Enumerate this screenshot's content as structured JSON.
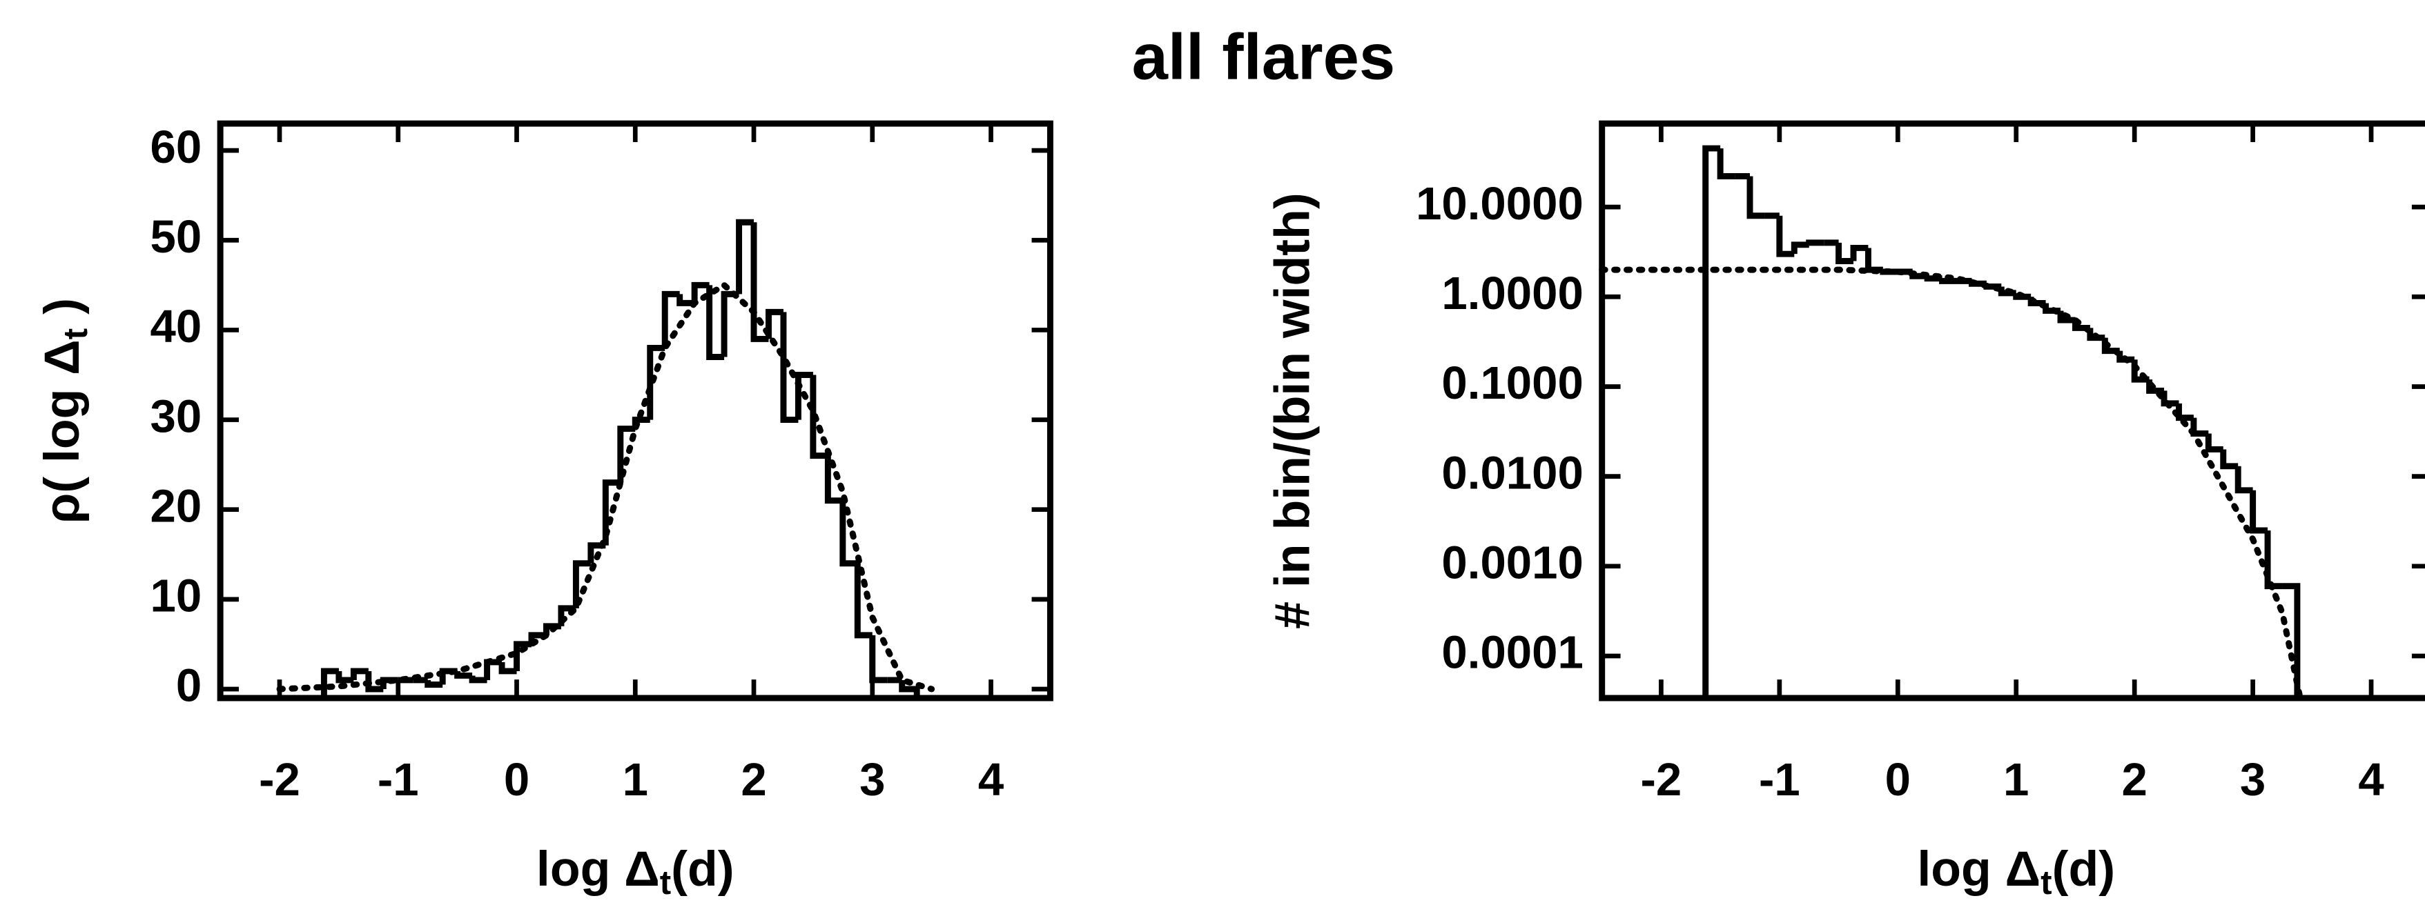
{
  "title": "all flares",
  "chart_data": [
    {
      "type": "histogram",
      "bins": [
        -1.625,
        -1.5,
        -1.375,
        -1.25,
        -1.125,
        -1.0,
        -0.875,
        -0.75,
        -0.625,
        -0.5,
        -0.375,
        -0.25,
        -0.125,
        0,
        0.125,
        0.25,
        0.375,
        0.5,
        0.625,
        0.75,
        0.875,
        1.0,
        1.125,
        1.25,
        1.375,
        1.5,
        1.625,
        1.75,
        1.875,
        2.0,
        2.125,
        2.25,
        2.375,
        2.5,
        2.625,
        2.75,
        2.875,
        3.0,
        3.125,
        3.25,
        3.375
      ],
      "values": [
        2,
        1,
        2,
        0,
        1,
        1,
        1,
        0.5,
        2,
        1.5,
        1,
        3,
        2,
        5,
        6,
        7,
        9,
        14,
        16,
        23,
        29,
        30,
        38,
        44,
        43,
        45,
        37,
        44,
        52,
        39,
        42,
        30,
        35,
        26,
        21,
        14,
        6,
        1,
        1,
        0
      ],
      "fit": {
        "x": [
          -2,
          -1.5,
          -1,
          -0.5,
          0,
          0.25,
          0.5,
          0.75,
          1,
          1.25,
          1.5,
          1.75,
          2,
          2.25,
          2.5,
          2.75,
          3,
          3.25,
          3.5
        ],
        "y": [
          0,
          0.3,
          1,
          2,
          4,
          6,
          9,
          17,
          29,
          38,
          43,
          45,
          42,
          37,
          31,
          22,
          8,
          1,
          0
        ]
      },
      "color": "#000000",
      "xlim": [
        -2.5,
        4.5
      ],
      "ylim": [
        -1,
        63
      ],
      "xticks": [
        -2,
        -1,
        0,
        1,
        2,
        3,
        4
      ],
      "yticks": [
        0,
        10,
        20,
        30,
        40,
        50,
        60
      ],
      "xlabel": [
        "log Δ",
        "t",
        "(d)"
      ],
      "ylabel": [
        "ρ( log Δ",
        "t",
        " )"
      ]
    },
    {
      "type": "histogram",
      "bins": [
        -1.625,
        -1.5,
        -1.375,
        -1.25,
        -1.125,
        -1.0,
        -0.875,
        -0.75,
        -0.625,
        -0.5,
        -0.375,
        -0.25,
        -0.125,
        0,
        0.125,
        0.25,
        0.375,
        0.5,
        0.625,
        0.75,
        0.875,
        1.0,
        1.125,
        1.25,
        1.375,
        1.5,
        1.625,
        1.75,
        1.875,
        2.0,
        2.125,
        2.25,
        2.375,
        2.5,
        2.625,
        2.75,
        2.875,
        3.0,
        3.125,
        3.25,
        3.375
      ],
      "values": [
        45,
        22,
        22,
        8,
        8,
        3,
        3.8,
        4,
        4,
        2.5,
        3.5,
        2,
        1.9,
        1.9,
        1.7,
        1.6,
        1.5,
        1.5,
        1.4,
        1.3,
        1.1,
        1.0,
        0.85,
        0.7,
        0.55,
        0.45,
        0.35,
        0.25,
        0.2,
        0.12,
        0.09,
        0.065,
        0.045,
        0.03,
        0.02,
        0.013,
        0.007,
        0.0025,
        0.0006,
        0.0006
      ],
      "fit": {
        "x": [
          -2.5,
          -2,
          -1.5,
          -1,
          -0.5,
          0,
          0.5,
          1,
          1.5,
          2,
          2.5,
          3,
          3.25,
          3.4
        ],
        "y": [
          2,
          2,
          2,
          2,
          2,
          1.9,
          1.6,
          1.1,
          0.55,
          0.17,
          0.03,
          0.002,
          0.0003,
          3.4e-05
        ]
      },
      "color": "#000000",
      "log_y": true,
      "xlim": [
        -2.5,
        4.5
      ],
      "ylim": [
        3.4e-05,
        85
      ],
      "xticks": [
        -2,
        -1,
        0,
        1,
        2,
        3,
        4
      ],
      "yticks": [
        {
          "value": 10,
          "label": "10.0000"
        },
        {
          "value": 1,
          "label": "1.0000"
        },
        {
          "value": 0.1,
          "label": "0.1000"
        },
        {
          "value": 0.01,
          "label": "0.0100"
        },
        {
          "value": 0.001,
          "label": "0.0010"
        },
        {
          "value": 0.0001,
          "label": "0.0001"
        }
      ],
      "xlabel": [
        "log Δ",
        "t",
        "(d)"
      ],
      "ylabel": [
        "# in bin/(bin width)"
      ]
    }
  ]
}
